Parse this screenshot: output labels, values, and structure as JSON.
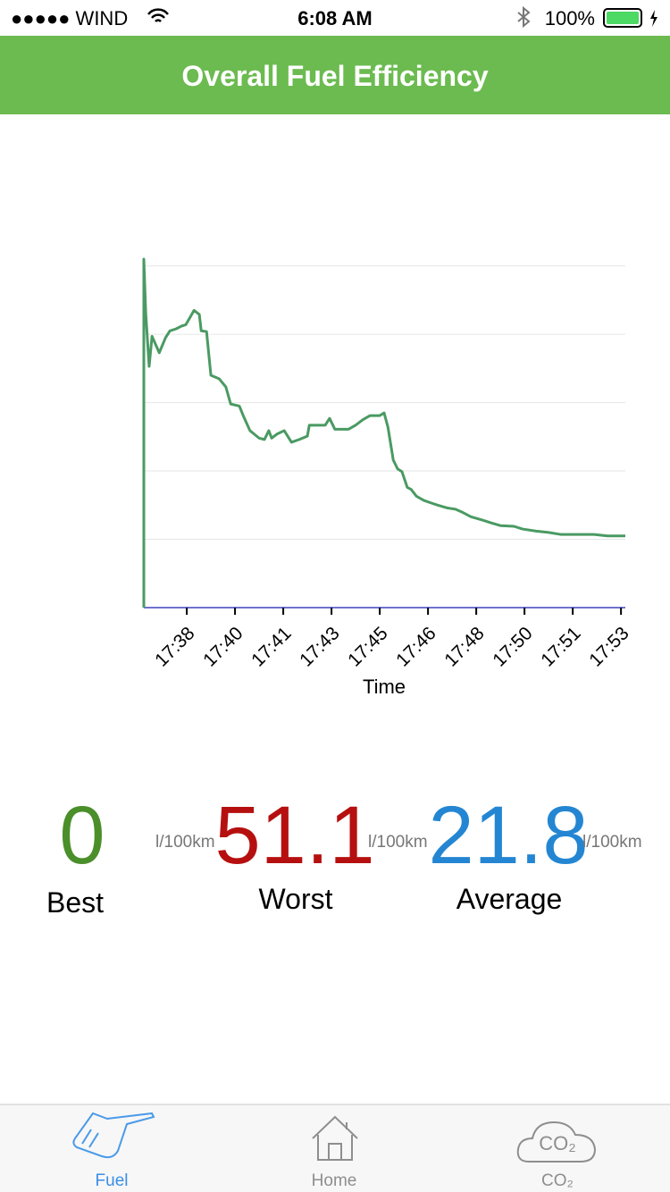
{
  "status_bar": {
    "carrier": "●●●●● WIND",
    "time": "6:08 AM",
    "battery": "100%"
  },
  "header": {
    "title": "Overall Fuel Efficiency"
  },
  "chart_data": {
    "type": "line",
    "x_label": "Time",
    "color": "#4a9a62",
    "grid": true,
    "xlim": [
      -0.89,
      9.09
    ],
    "ylim": [
      0,
      51
    ],
    "xticks": [
      {
        "value": 0,
        "label": "17:38"
      },
      {
        "value": 1,
        "label": "17:40"
      },
      {
        "value": 2,
        "label": "17:41"
      },
      {
        "value": 3,
        "label": "17:43"
      },
      {
        "value": 4,
        "label": "17:45"
      },
      {
        "value": 5,
        "label": "17:46"
      },
      {
        "value": 6,
        "label": "17:48"
      },
      {
        "value": 7,
        "label": "17:50"
      },
      {
        "value": 8,
        "label": "17:51"
      },
      {
        "value": 9,
        "label": "17:53"
      }
    ],
    "ygrid": [
      10,
      20,
      30,
      40,
      50
    ],
    "x": [
      -0.89,
      -0.89,
      -0.85,
      -0.78,
      -0.72,
      -0.57,
      -0.44,
      -0.35,
      -0.22,
      -0.11,
      -0.02,
      0.07,
      0.15,
      0.26,
      0.3,
      0.41,
      0.5,
      0.67,
      0.81,
      0.91,
      1.09,
      1.17,
      1.31,
      1.5,
      1.61,
      1.7,
      1.76,
      1.87,
      2.02,
      2.17,
      2.33,
      2.5,
      2.54,
      2.87,
      2.96,
      3.07,
      3.35,
      3.5,
      3.65,
      3.8,
      4.0,
      4.09,
      4.17,
      4.28,
      4.37,
      4.46,
      4.57,
      4.65,
      4.76,
      4.91,
      5.07,
      5.2,
      5.39,
      5.57,
      5.7,
      5.89,
      6.13,
      6.31,
      6.5,
      6.78,
      6.96,
      7.24,
      7.5,
      7.76,
      7.98,
      8.44,
      8.72,
      9.09
    ],
    "values": [
      0,
      51.0,
      43.1,
      35.3,
      39.7,
      37.3,
      39.5,
      40.5,
      40.8,
      41.2,
      41.4,
      42.5,
      43.5,
      42.9,
      40.5,
      40.4,
      34.0,
      33.5,
      32.3,
      29.8,
      29.5,
      28.1,
      25.9,
      24.8,
      24.6,
      25.9,
      24.8,
      25.4,
      25.9,
      24.2,
      24.6,
      25.1,
      26.7,
      26.7,
      27.7,
      26.1,
      26.1,
      26.7,
      27.5,
      28.1,
      28.1,
      28.5,
      26.4,
      21.6,
      20.3,
      19.9,
      17.6,
      17.3,
      16.3,
      15.7,
      15.3,
      15.0,
      14.6,
      14.4,
      14.0,
      13.3,
      12.8,
      12.4,
      12.0,
      11.9,
      11.5,
      11.2,
      11.0,
      10.7,
      10.7,
      10.7,
      10.5,
      10.5
    ]
  },
  "stats": [
    {
      "value": 0,
      "unit": "l/100km",
      "label": "Best",
      "color": "#4a8f2a"
    },
    {
      "value": 51.1,
      "unit": "l/100km",
      "label": "Worst",
      "color": "#b5100f"
    },
    {
      "value": 21.8,
      "unit": "l/100km",
      "label": "Average",
      "color": "#2486d2"
    }
  ],
  "tabs": [
    {
      "label": "Fuel",
      "active": true
    },
    {
      "label": "Home",
      "active": false
    },
    {
      "label": "CO₂",
      "active": false,
      "icon_text": "CO₂"
    }
  ]
}
